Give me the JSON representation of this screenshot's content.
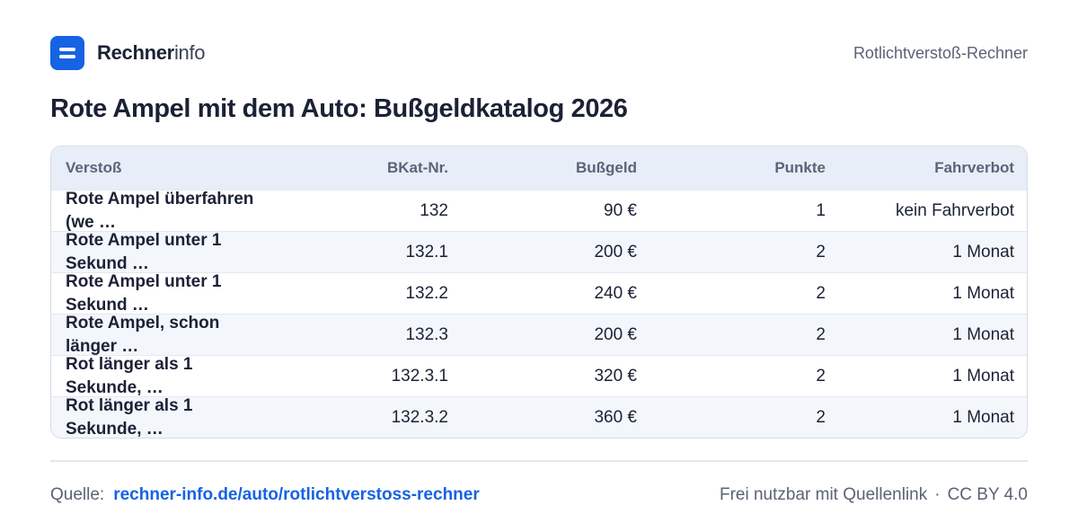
{
  "brand": {
    "name_strong": "Rechner",
    "name_light": "info",
    "icon": "menu-icon",
    "accent": "#1663e3"
  },
  "header": {
    "tool_name": "Rotlichtverstoß-Rechner"
  },
  "title": "Rote Ampel mit dem Auto: Bußgeldkatalog 2026",
  "table": {
    "columns": [
      "Verstoß",
      "BKat-Nr.",
      "Bußgeld",
      "Punkte",
      "Fahrverbot"
    ],
    "rows": [
      [
        "Rote Ampel überfahren (we …",
        "132",
        "90 €",
        "1",
        "kein Fahrverbot"
      ],
      [
        "Rote Ampel unter 1 Sekund …",
        "132.1",
        "200 €",
        "2",
        "1 Monat"
      ],
      [
        "Rote Ampel unter 1 Sekund …",
        "132.2",
        "240 €",
        "2",
        "1 Monat"
      ],
      [
        "Rote Ampel, schon länger …",
        "132.3",
        "200 €",
        "2",
        "1 Monat"
      ],
      [
        "Rot länger als 1 Sekunde, …",
        "132.3.1",
        "320 €",
        "2",
        "1 Monat"
      ],
      [
        "Rot länger als 1 Sekunde, …",
        "132.3.2",
        "360 €",
        "2",
        "1 Monat"
      ]
    ]
  },
  "footer": {
    "source_label": "Quelle:",
    "source_link": "rechner-info.de/auto/rotlichtverstoss-rechner",
    "license_text": "Frei nutzbar mit Quellenlink",
    "separator": "·",
    "license": "CC BY 4.0"
  }
}
